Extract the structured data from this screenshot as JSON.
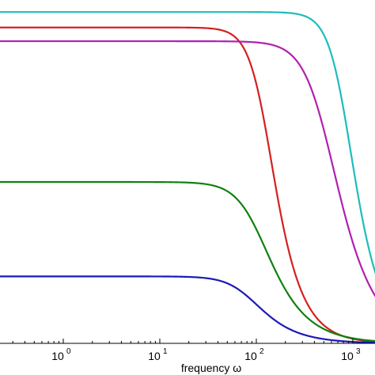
{
  "chart_data": {
    "type": "line",
    "xscale": "log",
    "xlim": [
      0.1,
      2500
    ],
    "ylim": [
      0,
      1
    ],
    "xlabel": "frequency ω",
    "ylabel": "",
    "grid": false,
    "x_ticks": [
      {
        "base": "10",
        "exp": "0",
        "value": 1
      },
      {
        "base": "10",
        "exp": "1",
        "value": 10
      },
      {
        "base": "10",
        "exp": "2",
        "value": 100
      },
      {
        "base": "10",
        "exp": "3",
        "value": 1000
      }
    ],
    "series": [
      {
        "color": "#1ebcbc",
        "level": 0.965,
        "corner": 800,
        "order": 2
      },
      {
        "color": "#d42020",
        "level": 0.92,
        "corner": 120,
        "order": 2
      },
      {
        "color": "#b020b0",
        "level": 0.88,
        "corner": 500,
        "order": 1.5
      },
      {
        "color": "#108010",
        "level": 0.47,
        "corner": 100,
        "order": 1.5
      },
      {
        "color": "#1a1ab8",
        "level": 0.195,
        "corner": 80,
        "order": 1.5
      }
    ]
  }
}
